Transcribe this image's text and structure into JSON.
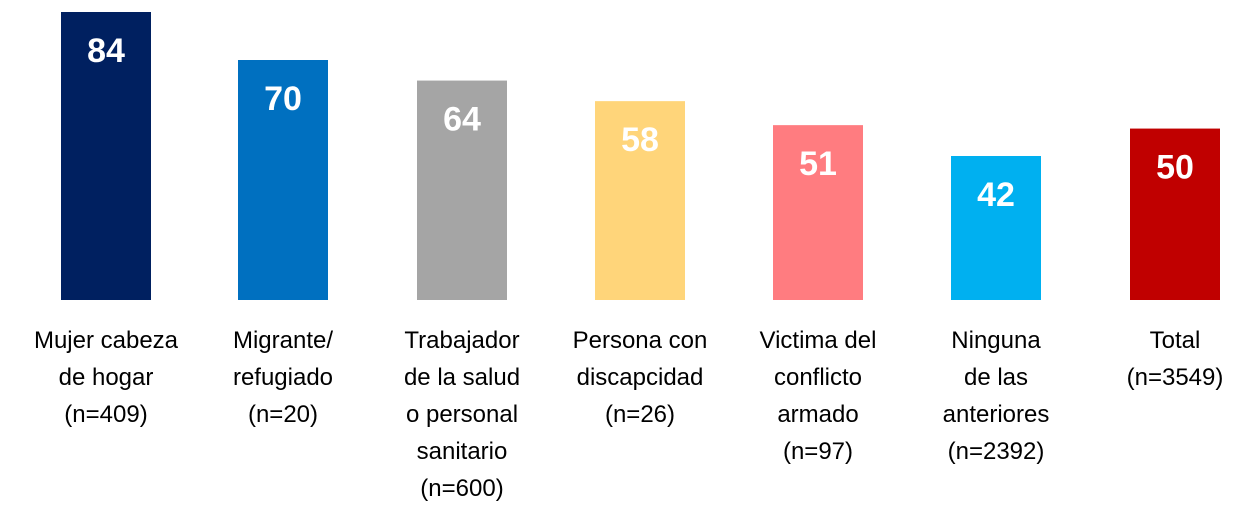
{
  "chart_data": {
    "type": "bar",
    "categories": [
      "Mujer cabeza\nde hogar\n(n=409)",
      "Migrante/\nrefugiado\n(n=20)",
      "Trabajador\nde la salud\no personal\nsanitario\n(n=600)",
      "Persona con\ndiscapcidad\n(n=26)",
      "Victima del\nconflicto\narmado\n(n=97)",
      "Ninguna\nde las\nanteriores\n(n=2392)",
      "Total\n(n=3549)"
    ],
    "values": [
      84,
      70,
      64,
      58,
      51,
      42,
      50
    ],
    "colors": [
      "#002060",
      "#0070c0",
      "#a5a5a5",
      "#ffd57a",
      "#ff7c80",
      "#00b0f0",
      "#c00000"
    ]
  }
}
